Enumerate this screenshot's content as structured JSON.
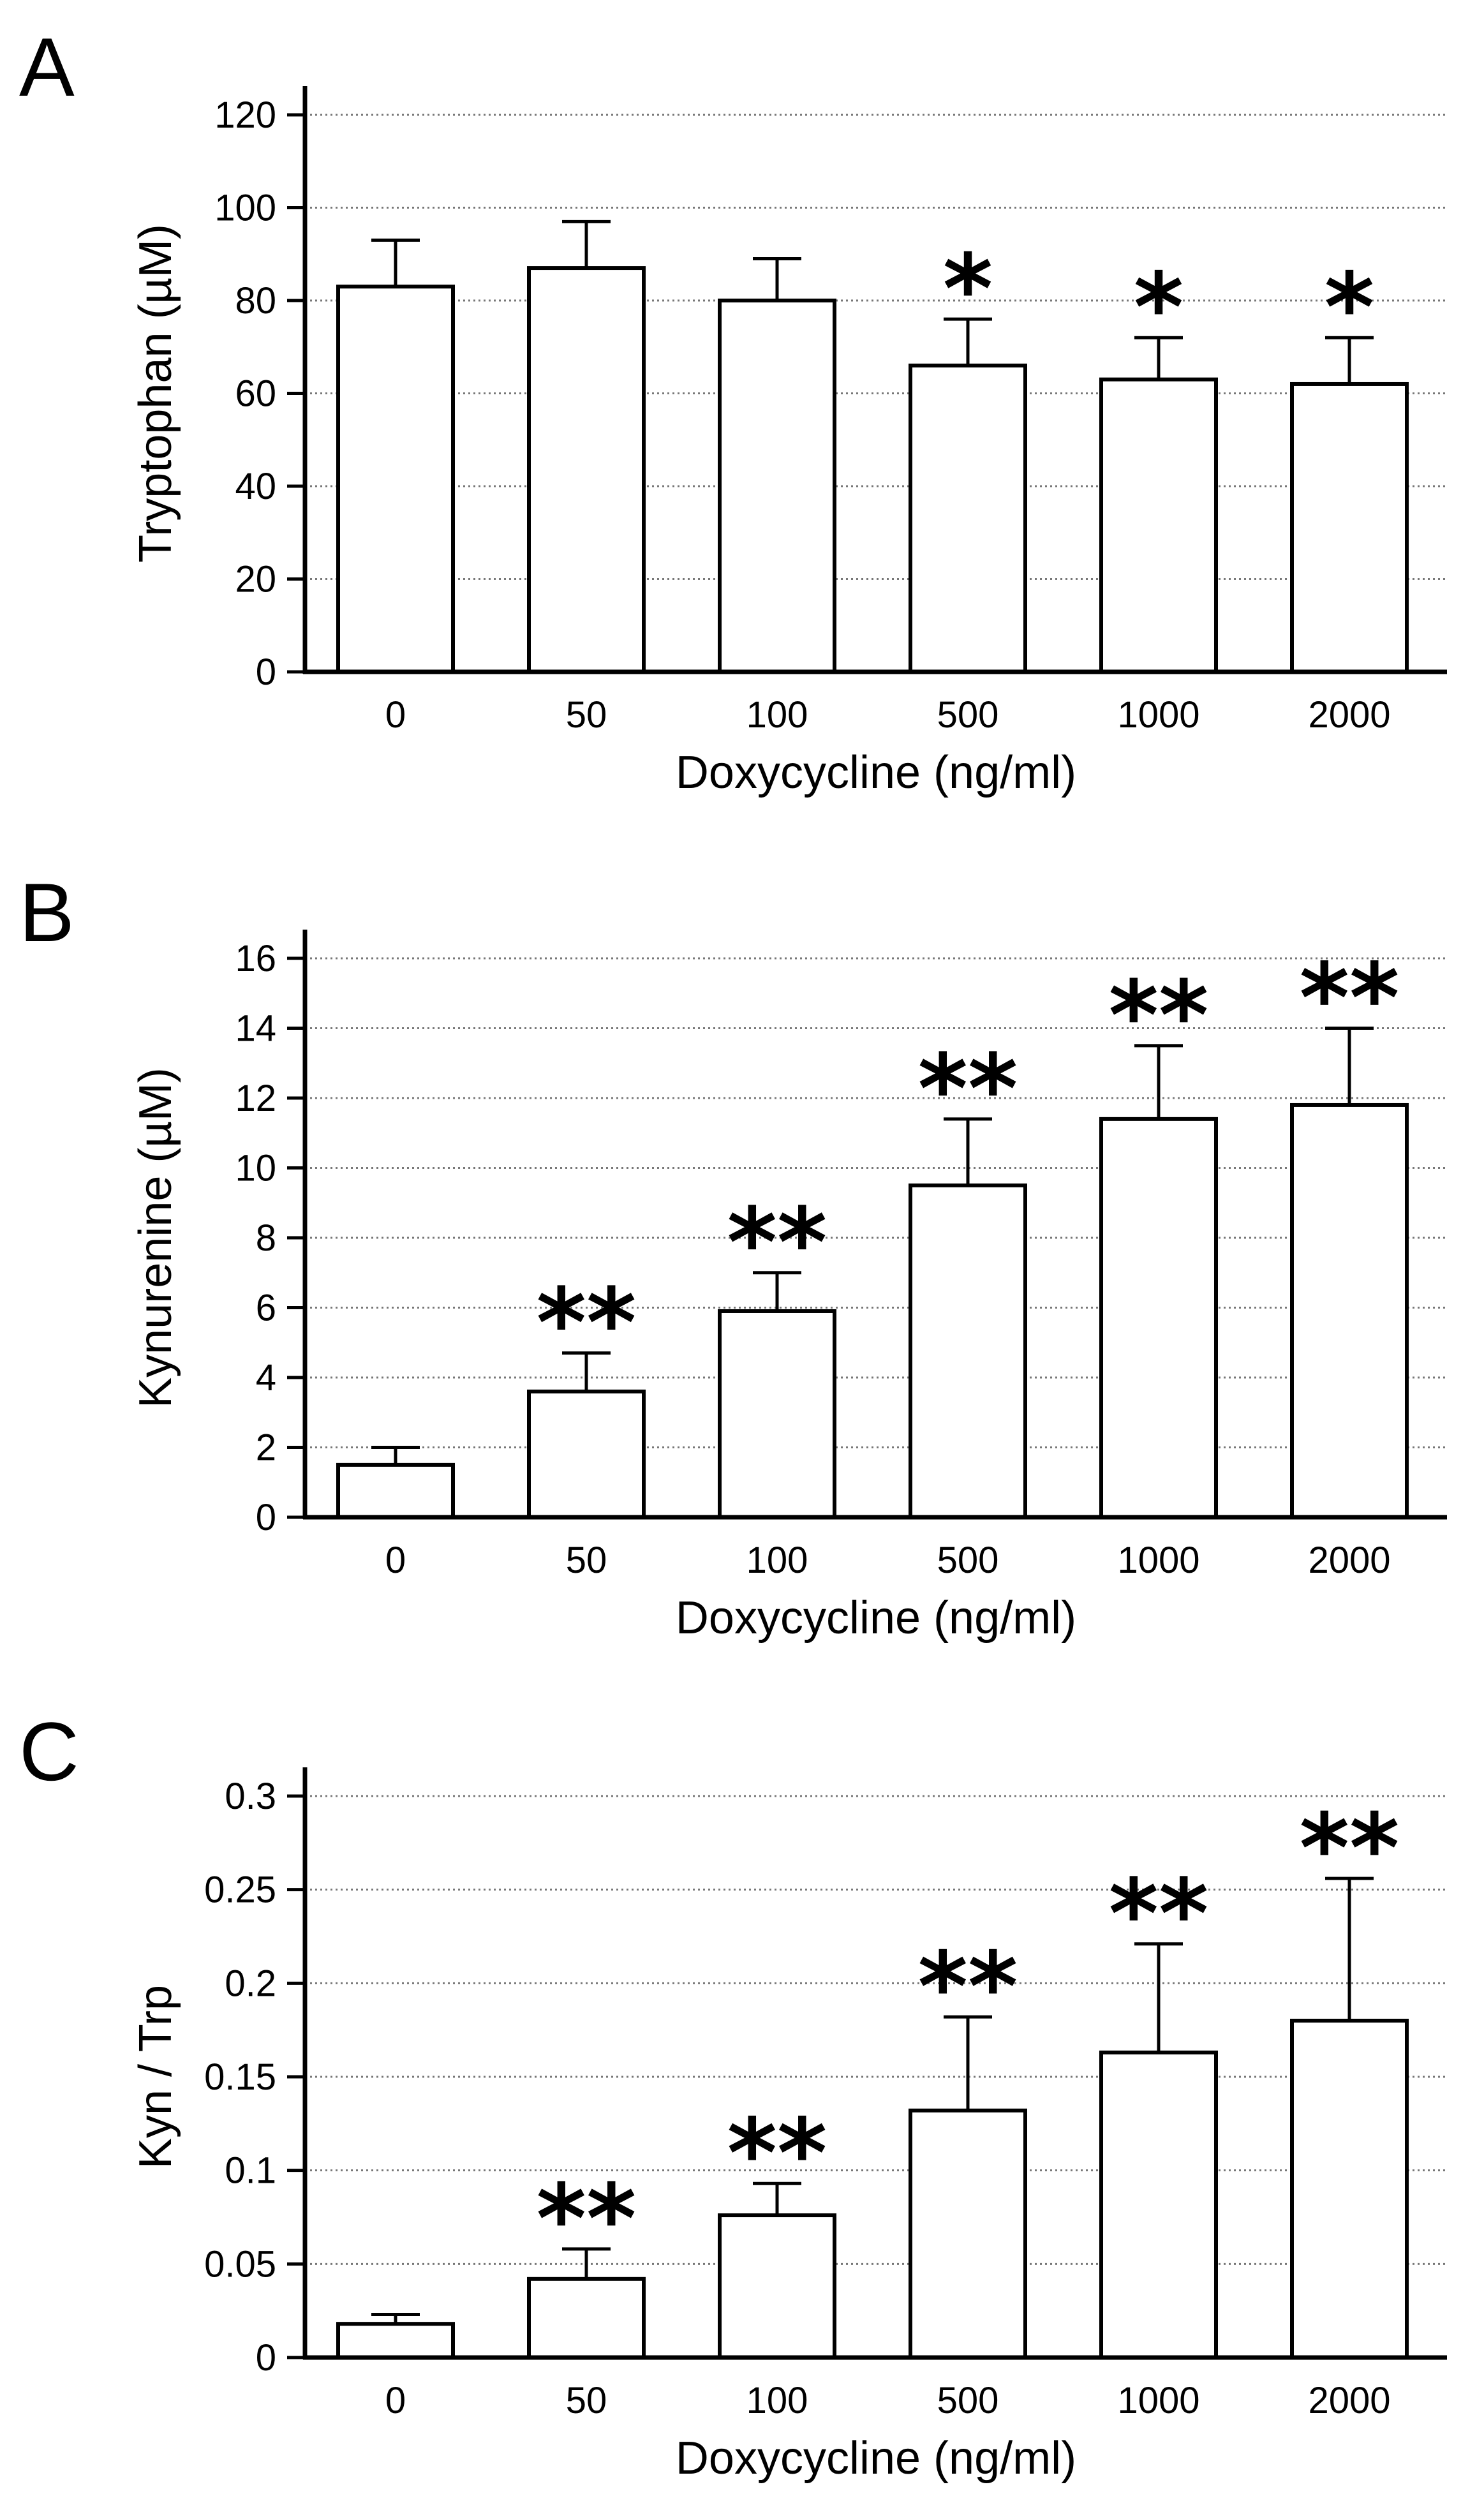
{
  "chart_data": [
    {
      "type": "bar",
      "panel": "A",
      "categories": [
        "0",
        "50",
        "100",
        "500",
        "1000",
        "2000"
      ],
      "values": [
        83,
        87,
        80,
        66,
        63,
        62
      ],
      "error": [
        10,
        10,
        9,
        10,
        9,
        10
      ],
      "significance": [
        "",
        "",
        "",
        "*",
        "*",
        "*"
      ],
      "xlabel": "Doxycycline (ng/ml)",
      "ylabel": "Tryptophan (µM)",
      "ylim": [
        0,
        120
      ],
      "yticks": [
        0,
        20,
        40,
        60,
        80,
        100,
        120
      ],
      "ytick_labels": [
        "0",
        "20",
        "40",
        "60",
        "80",
        "100",
        "120"
      ],
      "grid": true
    },
    {
      "type": "bar",
      "panel": "B",
      "categories": [
        "0",
        "50",
        "100",
        "500",
        "1000",
        "2000"
      ],
      "values": [
        1.5,
        3.6,
        5.9,
        9.5,
        11.4,
        11.8
      ],
      "error": [
        0.5,
        1.1,
        1.1,
        1.9,
        2.1,
        2.2
      ],
      "significance": [
        "",
        "**",
        "**",
        "**",
        "**",
        "**"
      ],
      "xlabel": "Doxycycline (ng/ml)",
      "ylabel": "Kynurenine (µM)",
      "ylim": [
        0,
        16
      ],
      "yticks": [
        0,
        2,
        4,
        6,
        8,
        10,
        12,
        14,
        16
      ],
      "ytick_labels": [
        "0",
        "2",
        "4",
        "6",
        "8",
        "10",
        "12",
        "14",
        "16"
      ],
      "grid": true
    },
    {
      "type": "bar",
      "panel": "C",
      "categories": [
        "0",
        "50",
        "100",
        "500",
        "1000",
        "2000"
      ],
      "values": [
        0.018,
        0.042,
        0.076,
        0.132,
        0.163,
        0.18
      ],
      "error": [
        0.005,
        0.016,
        0.017,
        0.05,
        0.058,
        0.076
      ],
      "significance": [
        "",
        "**",
        "**",
        "**",
        "**",
        "**"
      ],
      "xlabel": "Doxycycline (ng/ml)",
      "ylabel": "Kyn / Trp",
      "ylim": [
        0,
        0.3
      ],
      "yticks": [
        0,
        0.05,
        0.1,
        0.15,
        0.2,
        0.25,
        0.3
      ],
      "ytick_labels": [
        "0",
        "0.05",
        "0.1",
        "0.15",
        "0.2",
        "0.25",
        "0.3"
      ],
      "grid": true
    }
  ]
}
